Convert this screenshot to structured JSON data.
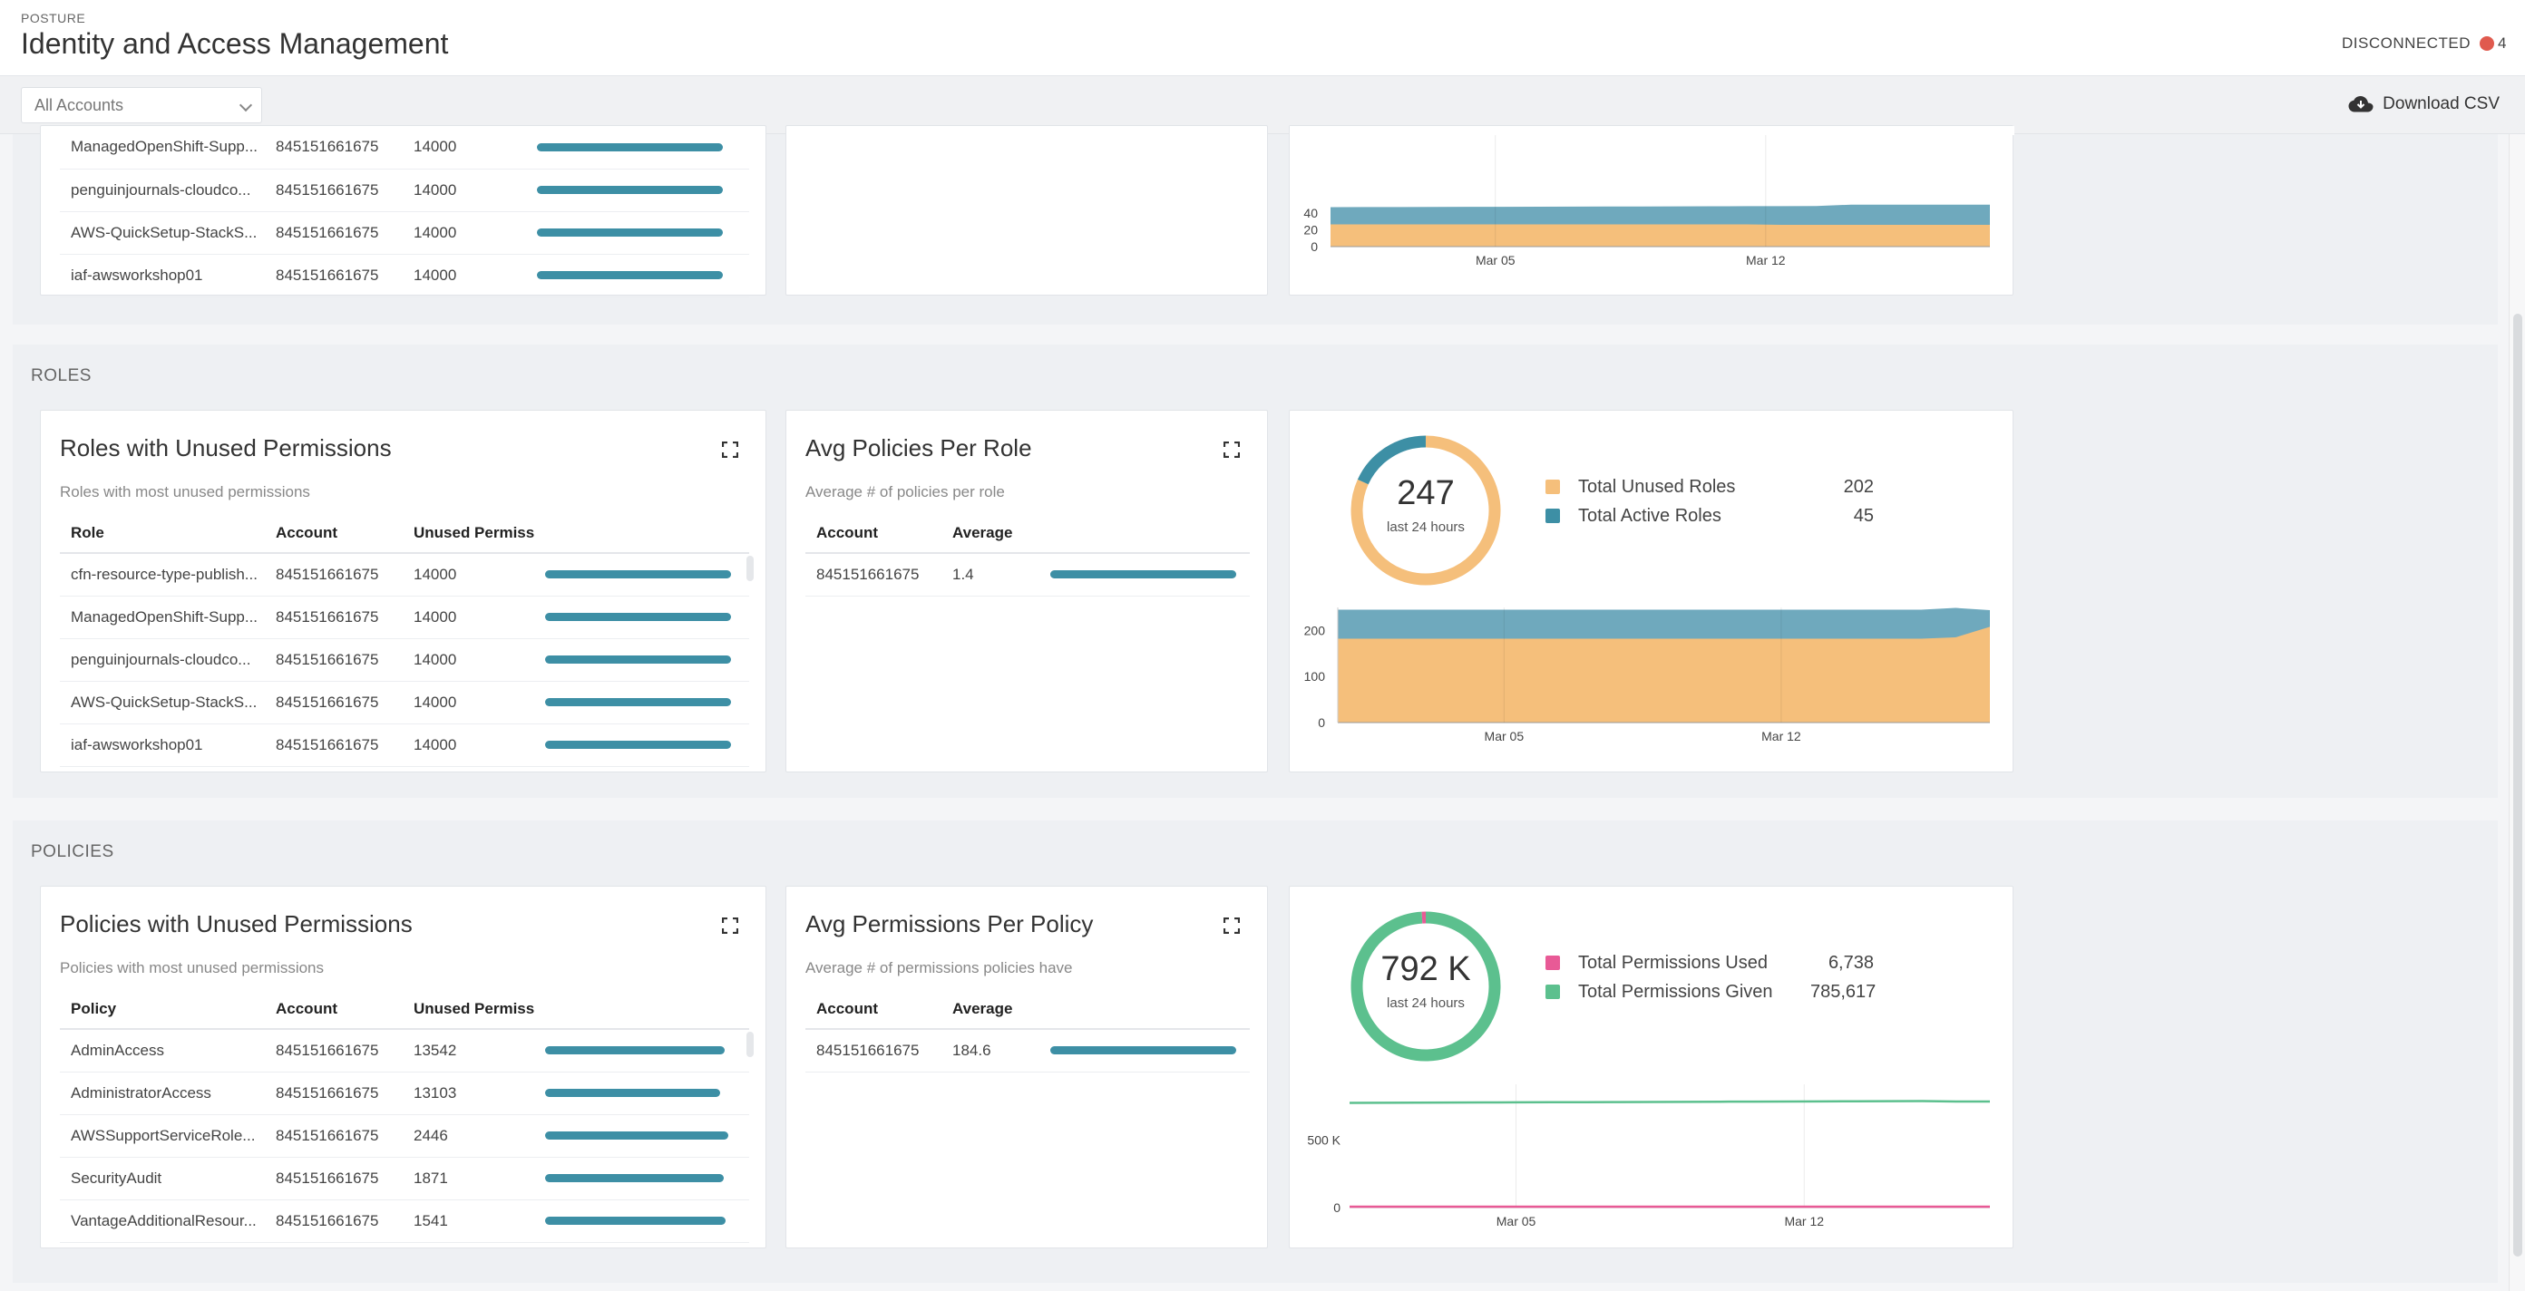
{
  "header": {
    "breadcrumb": "POSTURE",
    "title": "Identity and Access Management",
    "status_label": "DISCONNECTED",
    "status_count": "4",
    "status_color": "#e05a4e"
  },
  "toolbar": {
    "account_select": "All Accounts",
    "download_label": "Download CSV"
  },
  "colors": {
    "unused": "#f5bf7b",
    "active": "#6fa9bd",
    "bar": "#3d8fa5",
    "used_perm": "#e85a96",
    "given_perm": "#5cc08e"
  },
  "top_partial": {
    "rows": [
      {
        "name": "ManagedOpenShift-Supp...",
        "account": "845151661675",
        "unused": "14000",
        "fill": 1.0
      },
      {
        "name": "penguinjournals-cloudco...",
        "account": "845151661675",
        "unused": "14000",
        "fill": 1.0
      },
      {
        "name": "AWS-QuickSetup-StackS...",
        "account": "845151661675",
        "unused": "14000",
        "fill": 1.0
      },
      {
        "name": "iaf-awsworkshop01",
        "account": "845151661675",
        "unused": "14000",
        "fill": 1.0
      }
    ],
    "chart": {
      "yticks": [
        "0",
        "20",
        "40"
      ],
      "xticks": [
        "Mar 05",
        "Mar 12"
      ]
    }
  },
  "roles": {
    "section_label": "ROLES",
    "unused_card": {
      "title": "Roles with Unused Permissions",
      "subtitle": "Roles with most unused permissions",
      "columns": [
        "Role",
        "Account",
        "Unused Permiss"
      ],
      "rows": [
        {
          "name": "cfn-resource-type-publish...",
          "account": "845151661675",
          "unused": "14000",
          "fill": 1.0
        },
        {
          "name": "ManagedOpenShift-Supp...",
          "account": "845151661675",
          "unused": "14000",
          "fill": 1.0
        },
        {
          "name": "penguinjournals-cloudco...",
          "account": "845151661675",
          "unused": "14000",
          "fill": 1.0
        },
        {
          "name": "AWS-QuickSetup-StackS...",
          "account": "845151661675",
          "unused": "14000",
          "fill": 1.0
        },
        {
          "name": "iaf-awsworkshop01",
          "account": "845151661675",
          "unused": "14000",
          "fill": 1.0
        }
      ]
    },
    "avg_card": {
      "title": "Avg Policies Per Role",
      "subtitle": "Average # of policies per role",
      "columns": [
        "Account",
        "Average"
      ],
      "rows": [
        {
          "account": "845151661675",
          "average": "1.4",
          "fill": 1.0
        }
      ]
    },
    "summary": {
      "total": "247",
      "period": "last 24 hours",
      "legend": [
        {
          "label": "Total Unused Roles",
          "value": "202"
        },
        {
          "label": "Total Active Roles",
          "value": "45"
        }
      ],
      "yticks": [
        "0",
        "100",
        "200"
      ],
      "xticks": [
        "Mar 05",
        "Mar 12"
      ]
    }
  },
  "policies": {
    "section_label": "POLICIES",
    "unused_card": {
      "title": "Policies with Unused Permissions",
      "subtitle": "Policies with most unused permissions",
      "columns": [
        "Policy",
        "Account",
        "Unused Permiss"
      ],
      "rows": [
        {
          "name": "AdminAccess",
          "account": "845151661675",
          "unused": "13542",
          "fill": 0.967
        },
        {
          "name": "AdministratorAccess",
          "account": "845151661675",
          "unused": "13103",
          "fill": 0.94
        },
        {
          "name": "AWSSupportServiceRole...",
          "account": "845151661675",
          "unused": "2446",
          "fill": 0.985
        },
        {
          "name": "SecurityAudit",
          "account": "845151661675",
          "unused": "1871",
          "fill": 0.96
        },
        {
          "name": "VantageAdditionalResour...",
          "account": "845151661675",
          "unused": "1541",
          "fill": 0.97
        }
      ]
    },
    "avg_card": {
      "title": "Avg Permissions Per Policy",
      "subtitle": "Average # of permissions policies have",
      "columns": [
        "Account",
        "Average"
      ],
      "rows": [
        {
          "account": "845151661675",
          "average": "184.6",
          "fill": 1.0
        }
      ]
    },
    "summary": {
      "total": "792 K",
      "period": "last 24 hours",
      "legend": [
        {
          "label": "Total Permissions Used",
          "value": "6,738"
        },
        {
          "label": "Total Permissions Given",
          "value": "785,617"
        }
      ],
      "yticks": [
        "0",
        "500 K"
      ],
      "xticks": [
        "Mar 05",
        "Mar 12"
      ]
    }
  }
}
